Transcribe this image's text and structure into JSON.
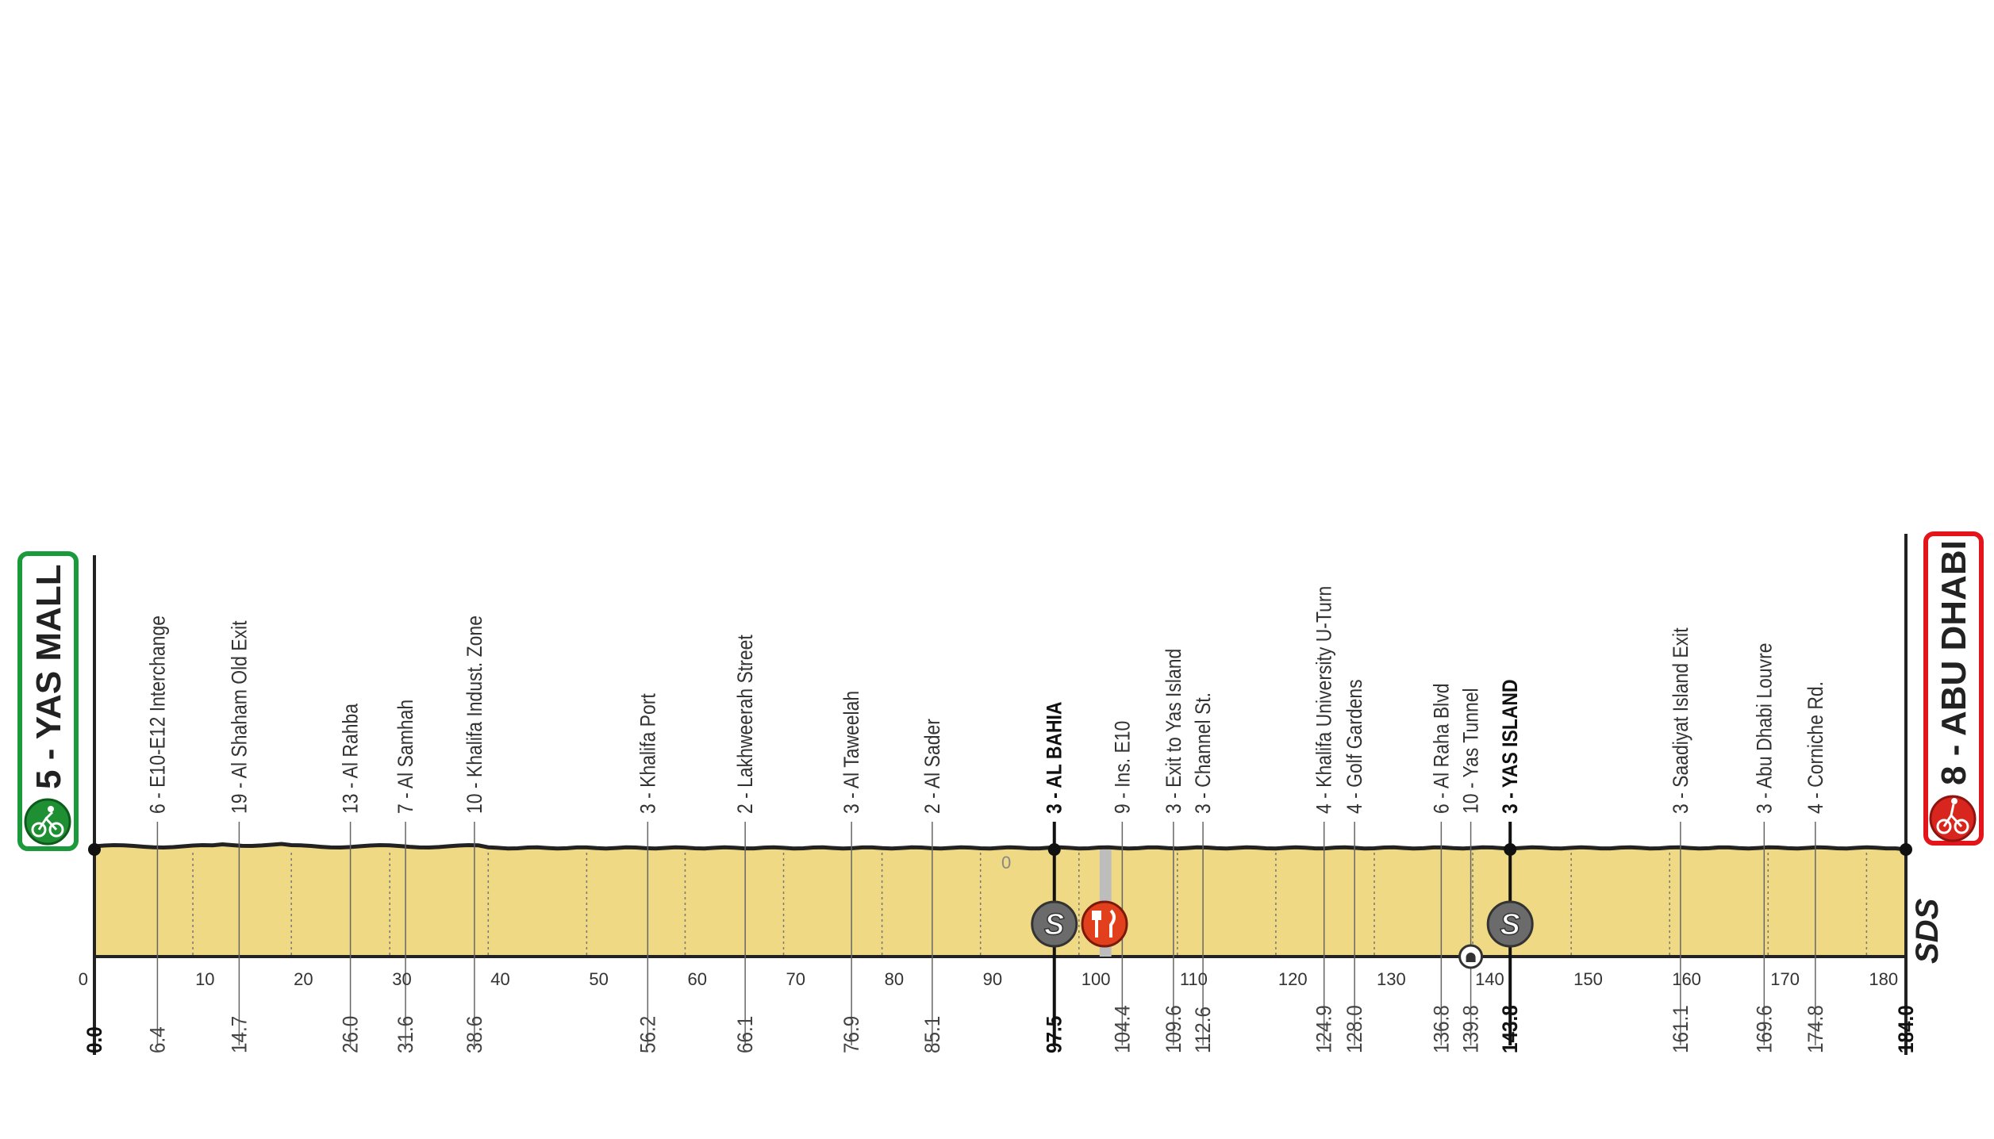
{
  "start": {
    "label": "5 - YAS MALL",
    "color": "#1a9a3a",
    "icon": "cyclist-icon"
  },
  "finish": {
    "label": "8 - ABU DHABI",
    "color": "#e3151a",
    "icon": "cyclist-icon"
  },
  "distance_total": 184.0,
  "axis_ticks": [
    0,
    10,
    20,
    30,
    40,
    50,
    60,
    70,
    80,
    90,
    100,
    110,
    120,
    130,
    140,
    150,
    160,
    170,
    180
  ],
  "altitude_label": "0",
  "waypoints": [
    {
      "km": "0.0",
      "label": "",
      "bold": true
    },
    {
      "km": "6.4",
      "label": "6 - E10-E12 Interchange",
      "bold": false
    },
    {
      "km": "14.7",
      "label": "19 - Al Shaham Old Exit",
      "bold": false
    },
    {
      "km": "26.0",
      "label": "13 - Al Rahba",
      "bold": false
    },
    {
      "km": "31.6",
      "label": "7 - Al Samhah",
      "bold": false
    },
    {
      "km": "38.6",
      "label": "10 - Khalifa Indust. Zone",
      "bold": false
    },
    {
      "km": "56.2",
      "label": "3 - Khalifa Port",
      "bold": false
    },
    {
      "km": "66.1",
      "label": "2 - Lakhweerah Street",
      "bold": false
    },
    {
      "km": "76.9",
      "label": "3 - Al Taweelah",
      "bold": false
    },
    {
      "km": "85.1",
      "label": "2 - Al Sader",
      "bold": false
    },
    {
      "km": "97.5",
      "label": "3 - AL BAHIA",
      "bold": true
    },
    {
      "km": "104.4",
      "label": "9 - Ins. E10",
      "bold": false
    },
    {
      "km": "109.6",
      "label": "3 - Exit to Yas Island",
      "bold": false
    },
    {
      "km": "112.6",
      "label": "3 - Channel St.",
      "bold": false
    },
    {
      "km": "124.9",
      "label": "4 - Khalifa University U-Turn",
      "bold": false
    },
    {
      "km": "128.0",
      "label": "4 - Golf Gardens",
      "bold": false
    },
    {
      "km": "136.8",
      "label": "6 - Al Raha Blvd",
      "bold": false
    },
    {
      "km": "139.8",
      "label": "10 - Yas Tunnel",
      "bold": false
    },
    {
      "km": "143.8",
      "label": "3 - YAS ISLAND",
      "bold": true
    },
    {
      "km": "161.1",
      "label": "3 - Saadiyat Island Exit",
      "bold": false
    },
    {
      "km": "169.6",
      "label": "3 - Abu Dhabi Louvre",
      "bold": false
    },
    {
      "km": "174.8",
      "label": "4 - Corniche Rd.",
      "bold": false
    },
    {
      "km": "184.0",
      "label": "",
      "bold": true
    }
  ],
  "markers": [
    {
      "km": 97.5,
      "type": "sprint",
      "icon": "sprint-icon",
      "symbol": "S",
      "color": "#6b6b6b"
    },
    {
      "km": 102.6,
      "type": "feed-zone",
      "icon": "fork-knife-icon",
      "color": "#e2401c"
    },
    {
      "km": 139.8,
      "type": "tunnel",
      "icon": "tunnel-icon",
      "color": "#555555"
    },
    {
      "km": 143.8,
      "type": "sprint",
      "icon": "sprint-icon",
      "symbol": "S",
      "color": "#6b6b6b"
    }
  ],
  "logo": "SDS",
  "colors": {
    "profile_fill": "#efd985",
    "profile_line": "#222222"
  }
}
